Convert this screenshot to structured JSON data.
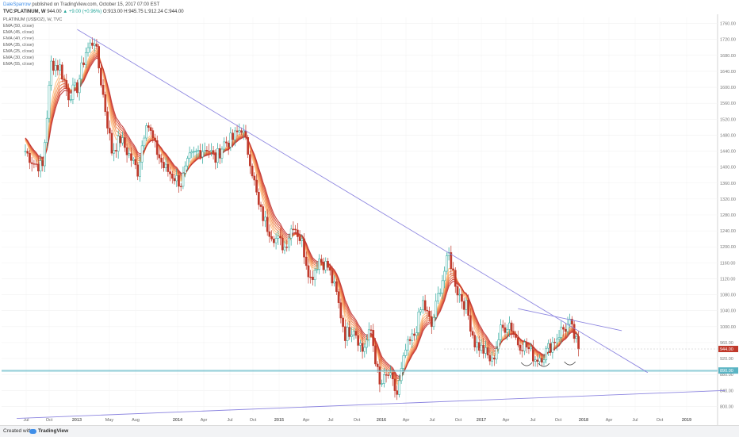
{
  "header": {
    "author": "DaleSparrow",
    "published": "published on TradingView.com, October 15, 2017 07:00 EST"
  },
  "symbol": {
    "title": "TVC:PLATINUM, W",
    "last": "944.00",
    "change": "▲ +9.00 (+0.96%)",
    "ohlc": "O:913.00 H:945.75 L:912.24 C:944.00"
  },
  "legend": {
    "series_title": "PLATINUM (US$/OZ), W, TVC",
    "ema_items": [
      "EMA (50, close)",
      "EMA (45, close)",
      "EMA (40, close)",
      "EMA (35, close)",
      "EMA (25, close)",
      "EMA (30, close)",
      "EMA (55, close)"
    ]
  },
  "footer": {
    "created_with": "Created with",
    "brand": "TradingView"
  },
  "colors": {
    "up": "#26a69a",
    "down": "#c0392b",
    "trendline": "#8d86e0",
    "support": "#5ab4c4",
    "emas": [
      "#ffbf80",
      "#f9ab6c",
      "#f39458",
      "#ec7a46",
      "#e15f3a",
      "#d44633",
      "#c03232"
    ]
  },
  "chart_data": {
    "type": "candlestick",
    "title": "TVC:PLATINUM, W",
    "ylim": [
      785,
      1775
    ],
    "y_ticks": [
      800,
      840,
      880,
      920,
      960,
      1000,
      1040,
      1080,
      1120,
      1160,
      1200,
      1240,
      1280,
      1320,
      1360,
      1400,
      1440,
      1480,
      1520,
      1560,
      1600,
      1640,
      1680,
      1720,
      1760
    ],
    "x_ticks": [
      "Jul",
      "Oct",
      "2013",
      "May",
      "Aug",
      "2014",
      "Apr",
      "Jul",
      "Oct",
      "2015",
      "Apr",
      "Jul",
      "Oct",
      "2016",
      "Apr",
      "Jul",
      "Oct",
      "2017",
      "Apr",
      "Jul",
      "Oct",
      "2018",
      "Apr",
      "Jul",
      "Oct",
      "2019"
    ],
    "price_path": [
      [
        "2012-06",
        1440
      ],
      [
        "2012-07",
        1410
      ],
      [
        "2012-08",
        1400
      ],
      [
        "2012-09",
        1660
      ],
      [
        "2012-10",
        1650
      ],
      [
        "2012-11",
        1580
      ],
      [
        "2012-12",
        1600
      ],
      [
        "2013-01",
        1690
      ],
      [
        "2013-02",
        1720
      ],
      [
        "2013-03",
        1580
      ],
      [
        "2013-04",
        1440
      ],
      [
        "2013-05",
        1470
      ],
      [
        "2013-06",
        1430
      ],
      [
        "2013-07",
        1390
      ],
      [
        "2013-08",
        1520
      ],
      [
        "2013-09",
        1450
      ],
      [
        "2013-10",
        1400
      ],
      [
        "2013-11",
        1380
      ],
      [
        "2013-12",
        1360
      ],
      [
        "2014-01",
        1420
      ],
      [
        "2014-02",
        1440
      ],
      [
        "2014-03",
        1450
      ],
      [
        "2014-04",
        1420
      ],
      [
        "2014-05",
        1460
      ],
      [
        "2014-06",
        1470
      ],
      [
        "2014-07",
        1500
      ],
      [
        "2014-08",
        1420
      ],
      [
        "2014-09",
        1300
      ],
      [
        "2014-10",
        1250
      ],
      [
        "2014-11",
        1220
      ],
      [
        "2014-12",
        1200
      ],
      [
        "2015-01",
        1260
      ],
      [
        "2015-02",
        1210
      ],
      [
        "2015-03",
        1120
      ],
      [
        "2015-04",
        1170
      ],
      [
        "2015-05",
        1150
      ],
      [
        "2015-06",
        1080
      ],
      [
        "2015-07",
        980
      ],
      [
        "2015-08",
        1000
      ],
      [
        "2015-09",
        940
      ],
      [
        "2015-10",
        990
      ],
      [
        "2015-11",
        850
      ],
      [
        "2015-12",
        880
      ],
      [
        "2016-01",
        830
      ],
      [
        "2016-02",
        940
      ],
      [
        "2016-03",
        980
      ],
      [
        "2016-04",
        1060
      ],
      [
        "2016-05",
        1000
      ],
      [
        "2016-06",
        1100
      ],
      [
        "2016-07",
        1180
      ],
      [
        "2016-08",
        1090
      ],
      [
        "2016-09",
        1050
      ],
      [
        "2016-10",
        960
      ],
      [
        "2016-11",
        940
      ],
      [
        "2016-12",
        910
      ],
      [
        "2017-01",
        990
      ],
      [
        "2017-02",
        1010
      ],
      [
        "2017-03",
        960
      ],
      [
        "2017-04",
        950
      ],
      [
        "2017-05",
        920
      ],
      [
        "2017-06",
        930
      ],
      [
        "2017-07",
        960
      ],
      [
        "2017-08",
        990
      ],
      [
        "2017-09",
        1005
      ],
      [
        "2017-10",
        944
      ]
    ],
    "ema_names": [
      "EMA (25, close)",
      "EMA (30, close)",
      "EMA (35, close)",
      "EMA (40, close)",
      "EMA (45, close)",
      "EMA (50, close)",
      "EMA (55, close)"
    ],
    "trendlines": [
      {
        "name": "major-resistance",
        "from": [
          "2012-12",
          1745
        ],
        "to": [
          "2018-06",
          885
        ]
      },
      {
        "name": "2017-resistance",
        "from": [
          "2017-03",
          1045
        ],
        "to": [
          "2018-03",
          990
        ]
      },
      {
        "name": "long-term-support",
        "from": [
          "2012-05",
          770
        ],
        "to": [
          "2019-03",
          840
        ]
      }
    ],
    "support_level": 890,
    "last_price": 944,
    "price_labels": [
      "944.00",
      "890.00"
    ]
  }
}
